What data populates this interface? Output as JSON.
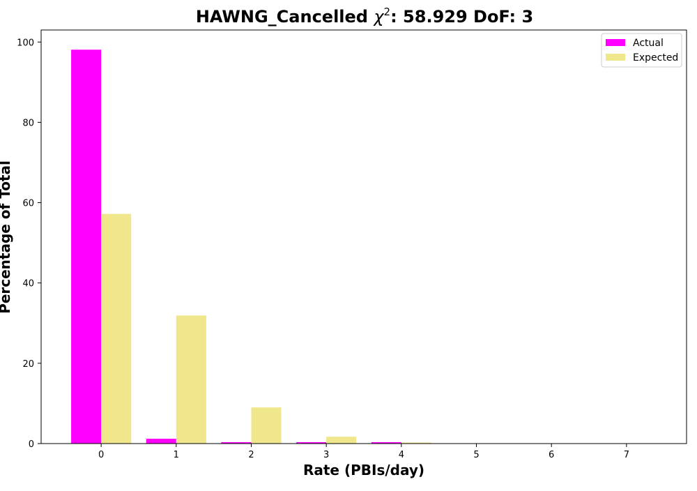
{
  "chart_data": {
    "type": "bar",
    "title_prefix": "HAWNG_Cancelled ",
    "title_symbol": "χ",
    "title_superscript": "2",
    "title_suffix": ": 58.929 DoF: 3",
    "xlabel": "Rate (PBIs/day)",
    "ylabel": "Percentage of Total",
    "categories": [
      "0",
      "1",
      "2",
      "3",
      "4",
      "5",
      "6",
      "7"
    ],
    "x": [
      0,
      1,
      2,
      3,
      4,
      5,
      6,
      7
    ],
    "series": [
      {
        "name": "Actual",
        "color": "#ff00ff",
        "values": [
          98.1,
          1.2,
          0.35,
          0.35,
          0.35,
          0,
          0,
          0
        ]
      },
      {
        "name": "Expected",
        "color": "#f0e68c",
        "values": [
          57.2,
          31.9,
          9.0,
          1.7,
          0.25,
          0,
          0,
          0
        ]
      }
    ],
    "ylim": [
      0,
      103
    ],
    "xlim": [
      -0.8,
      7.8
    ],
    "yticks": [
      0,
      20,
      40,
      60,
      80,
      100
    ],
    "grid": false,
    "legend_position": "top-right"
  }
}
